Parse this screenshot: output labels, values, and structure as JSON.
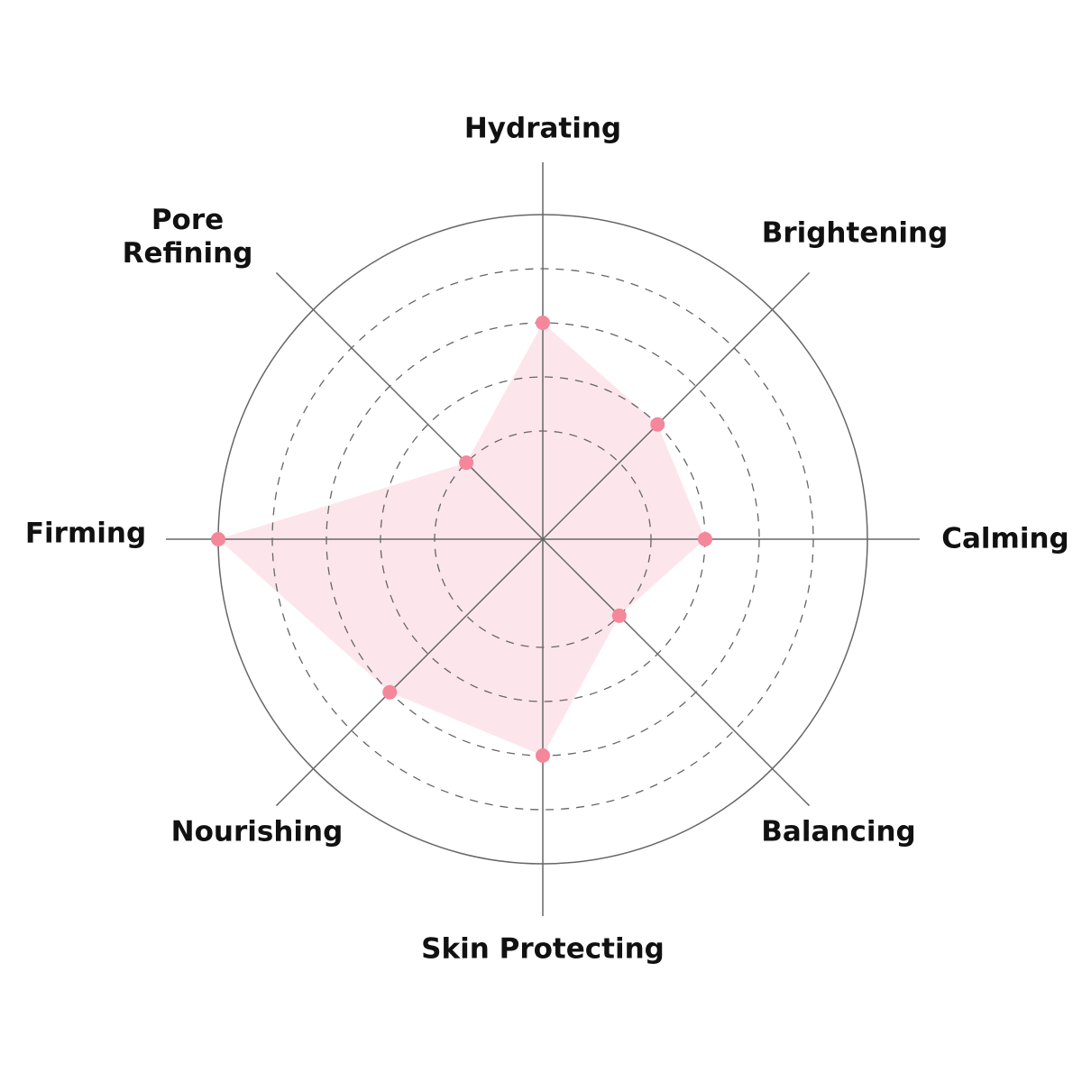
{
  "chart_data": {
    "type": "radar",
    "categories": [
      "Hydrating",
      "Brightening",
      "Calming",
      "Balancing",
      "Skin Protecting",
      "Nourishing",
      "Firming",
      "Pore\nRefining"
    ],
    "values": [
      4,
      3,
      3,
      2,
      4,
      4,
      6,
      2
    ],
    "rlim": [
      0,
      6
    ],
    "rings": [
      2,
      3,
      4,
      5,
      6
    ],
    "grid": true,
    "colors": {
      "fill": "#fde6eb",
      "point": "#f4879a",
      "grid": "#666666",
      "text": "#111111"
    }
  }
}
